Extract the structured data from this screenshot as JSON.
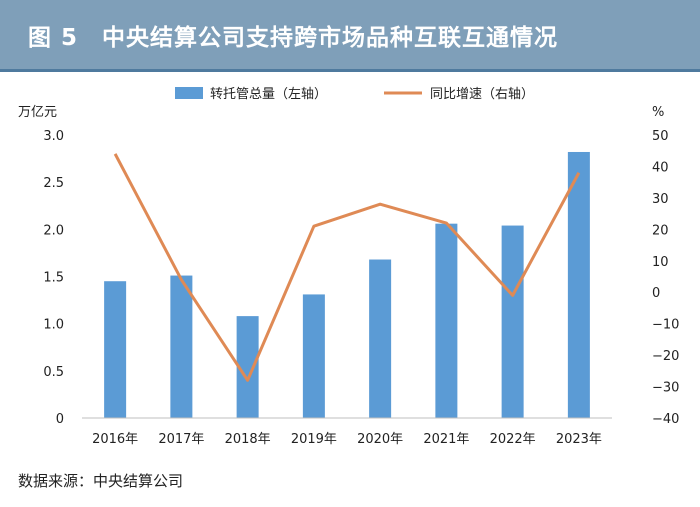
{
  "header": {
    "title": "图 5　中央结算公司支持跨市场品种互联互通情况"
  },
  "source": {
    "label": "数据来源：",
    "value": "中央结算公司"
  },
  "colors": {
    "bar": "#5b9bd5",
    "line": "#df8a55",
    "header_bg": "#7f9fb9",
    "header_border": "#4f7a9e"
  },
  "chart_data": {
    "type": "bar+line",
    "categories": [
      "2016年",
      "2017年",
      "2018年",
      "2019年",
      "2020年",
      "2021年",
      "2022年",
      "2023年"
    ],
    "series": [
      {
        "name": "转托管总量（左轴）",
        "type": "bar",
        "axis": "left",
        "values": [
          1.45,
          1.51,
          1.08,
          1.31,
          1.68,
          2.06,
          2.04,
          2.82
        ]
      },
      {
        "name": "同比增速（右轴）",
        "type": "line",
        "axis": "right",
        "values": [
          44,
          4,
          -28,
          21,
          28,
          22,
          -1,
          38
        ]
      }
    ],
    "left_axis": {
      "label": "万亿元",
      "range": [
        0,
        3.0
      ],
      "ticks": [
        "0",
        "0.5",
        "1.0",
        "1.5",
        "2.0",
        "2.5",
        "3.0"
      ],
      "tick_values": [
        0,
        0.5,
        1.0,
        1.5,
        2.0,
        2.5,
        3.0
      ]
    },
    "right_axis": {
      "label": "%",
      "range": [
        -40,
        50
      ],
      "ticks": [
        "−40",
        "−30",
        "−20",
        "−10",
        "0",
        "10",
        "20",
        "30",
        "40",
        "50"
      ],
      "tick_values": [
        -40,
        -30,
        -20,
        -10,
        0,
        10,
        20,
        30,
        40,
        50
      ]
    },
    "legend": "top-center",
    "grid": false
  }
}
